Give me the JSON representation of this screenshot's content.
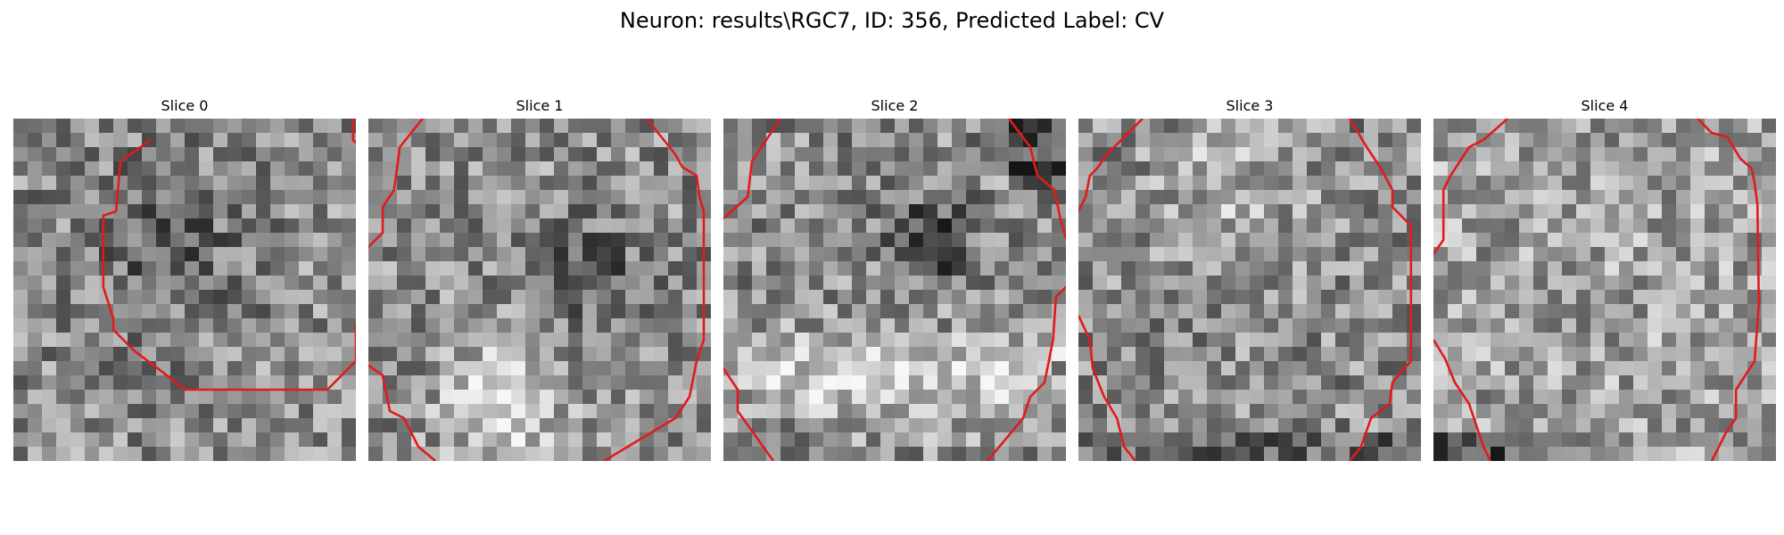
{
  "figure": {
    "title": "Neuron: results\\RGC7, ID: 356, Predicted Label: CV"
  },
  "panels": [
    {
      "title": "Slice 0",
      "contour": "inner-ring",
      "seed": 11
    },
    {
      "title": "Slice 1",
      "contour": "outer-ring",
      "seed": 23
    },
    {
      "title": "Slice 2",
      "contour": "outer-ring",
      "seed": 37
    },
    {
      "title": "Slice 3",
      "contour": "outer-ring",
      "seed": 41
    },
    {
      "title": "Slice 4",
      "contour": "outer-ring",
      "seed": 53
    }
  ],
  "colors": {
    "contour": "#e11b1b",
    "background": "#ffffff"
  }
}
